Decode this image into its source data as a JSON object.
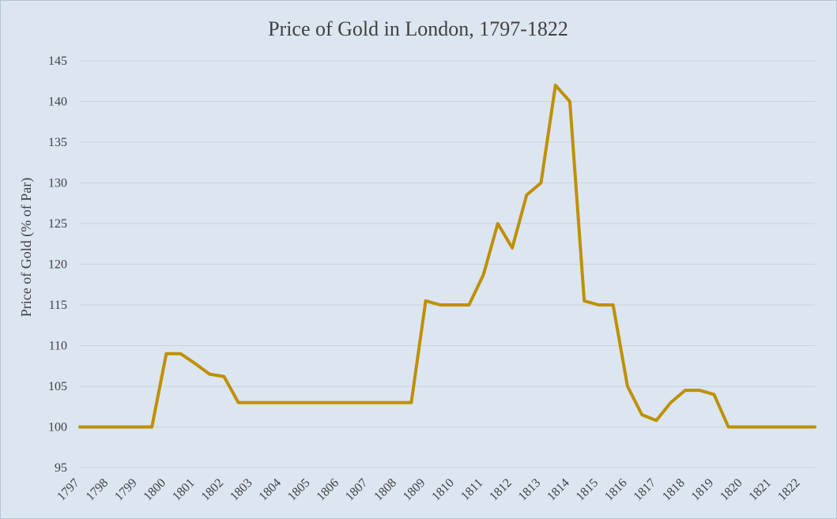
{
  "chart_data": {
    "type": "line",
    "title": "Price of Gold in London,  1797-1822",
    "xlabel": "",
    "ylabel": "Price of Gold (% of Par)",
    "ylim": [
      95,
      145
    ],
    "yticks": [
      95,
      100,
      105,
      110,
      115,
      120,
      125,
      130,
      135,
      140,
      145
    ],
    "xlim": [
      1797,
      1822.5
    ],
    "xticks": [
      "1797",
      "1798",
      "1799",
      "1800",
      "1801",
      "1802",
      "1803",
      "1804",
      "1805",
      "1806",
      "1807",
      "1808",
      "1809",
      "1810",
      "1811",
      "1812",
      "1813",
      "1814",
      "1815",
      "1816",
      "1817",
      "1818",
      "1819",
      "1820",
      "1821",
      "1822"
    ],
    "grid": true,
    "line_color": "#bf9000",
    "series": [
      {
        "name": "Price of Gold",
        "x": [
          1797,
          1799.5,
          1800,
          1800.5,
          1801,
          1801.5,
          1802,
          1802.5,
          1808.5,
          1809,
          1809.5,
          1810,
          1810.5,
          1811,
          1811.5,
          1812,
          1812.5,
          1813,
          1813.5,
          1814,
          1814.5,
          1815,
          1815.5,
          1816,
          1816.5,
          1817,
          1817.5,
          1818,
          1818.5,
          1819,
          1819.5,
          1822.5
        ],
        "y": [
          100,
          100,
          109,
          109,
          107.8,
          106.5,
          106.2,
          103,
          103,
          115.5,
          115,
          115,
          115,
          118.7,
          125,
          122,
          128.5,
          130,
          142,
          140,
          115.5,
          115,
          115,
          105,
          101.5,
          100.8,
          103,
          104.5,
          104.5,
          104,
          100,
          100
        ]
      }
    ]
  }
}
